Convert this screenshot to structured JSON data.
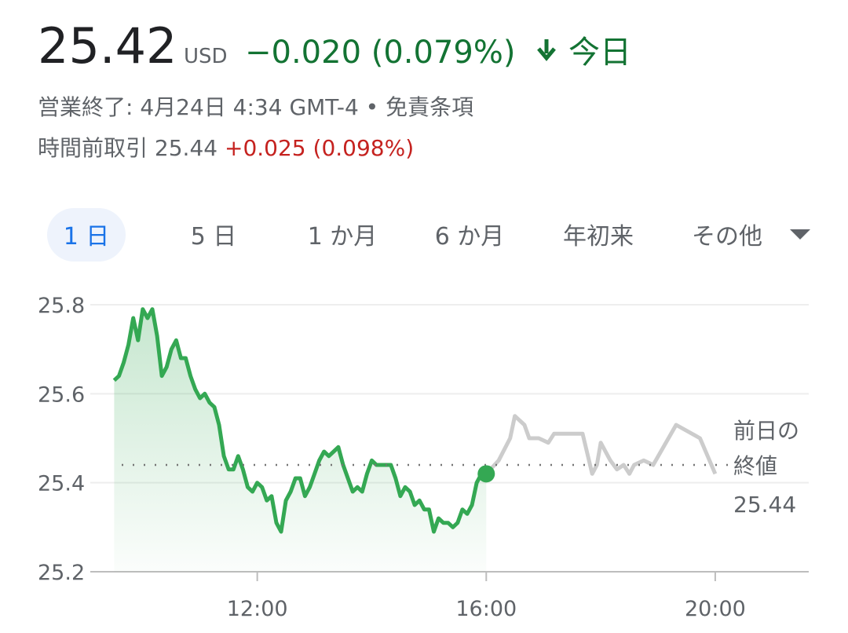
{
  "header": {
    "price": "25.42",
    "currency": "USD",
    "change": "−0.020 (0.079%)",
    "period": "今日",
    "status": "営業終了: 4月24日 4:34 GMT-4",
    "separator": "•",
    "disclaimer": "免責条項",
    "premarket_label": "時間前取引",
    "premarket_price": "25.44",
    "premarket_change": "+0.025 (0.098%)"
  },
  "tabs": [
    "1 日",
    "5 日",
    "1 か月",
    "6 か月",
    "年初来",
    "その他"
  ],
  "chart_data": {
    "type": "line",
    "xlim": [
      545,
      1298
    ],
    "ylim": [
      25.2,
      25.8
    ],
    "xticks": [
      {
        "value": 720,
        "label": "12:00"
      },
      {
        "value": 960,
        "label": "16:00"
      },
      {
        "value": 1200,
        "label": "20:00"
      }
    ],
    "yticks": [
      25.2,
      25.4,
      25.6,
      25.8
    ],
    "grid": true,
    "reference": {
      "value": 25.44,
      "label": [
        "前日の",
        "終値"
      ]
    },
    "series": [
      {
        "color": "#34a853",
        "area": true,
        "end_dot": true,
        "x": [
          570,
          575,
          580,
          585,
          590,
          595,
          600,
          605,
          610,
          615,
          620,
          625,
          630,
          635,
          640,
          645,
          650,
          655,
          660,
          665,
          670,
          675,
          680,
          685,
          690,
          695,
          700,
          705,
          710,
          715,
          720,
          725,
          730,
          735,
          740,
          745,
          750,
          755,
          760,
          765,
          770,
          775,
          780,
          785,
          790,
          795,
          800,
          805,
          810,
          815,
          820,
          825,
          830,
          835,
          840,
          845,
          850,
          855,
          860,
          865,
          870,
          875,
          880,
          885,
          890,
          895,
          900,
          905,
          910,
          915,
          920,
          925,
          930,
          935,
          940,
          945,
          950,
          955,
          960
        ],
        "values": [
          25.63,
          25.64,
          25.67,
          25.71,
          25.77,
          25.72,
          25.79,
          25.77,
          25.79,
          25.73,
          25.64,
          25.66,
          25.7,
          25.72,
          25.68,
          25.68,
          25.64,
          25.61,
          25.59,
          25.6,
          25.58,
          25.57,
          25.53,
          25.46,
          25.43,
          25.43,
          25.46,
          25.43,
          25.39,
          25.38,
          25.4,
          25.39,
          25.36,
          25.37,
          25.31,
          25.29,
          25.36,
          25.38,
          25.41,
          25.41,
          25.37,
          25.39,
          25.42,
          25.45,
          25.47,
          25.46,
          25.47,
          25.48,
          25.44,
          25.41,
          25.38,
          25.39,
          25.38,
          25.42,
          25.45,
          25.44,
          25.44,
          25.44,
          25.44,
          25.41,
          25.37,
          25.39,
          25.38,
          25.35,
          25.36,
          25.34,
          25.34,
          25.29,
          25.32,
          25.31,
          25.31,
          25.3,
          25.31,
          25.34,
          25.33,
          25.35,
          25.4,
          25.42,
          25.42
        ]
      },
      {
        "color": "#cccccc",
        "area": false,
        "end_dot": false,
        "x": [
          960,
          973,
          985,
          990,
          1000,
          1005,
          1015,
          1025,
          1031,
          1043,
          1061,
          1071,
          1076,
          1080,
          1090,
          1097,
          1104,
          1110,
          1115,
          1125,
          1135,
          1159,
          1184,
          1200
        ],
        "values": [
          25.42,
          25.45,
          25.5,
          25.55,
          25.53,
          25.5,
          25.5,
          25.49,
          25.51,
          25.51,
          25.51,
          25.42,
          25.44,
          25.49,
          25.45,
          25.43,
          25.44,
          25.42,
          25.44,
          25.45,
          25.44,
          25.53,
          25.5,
          25.42
        ]
      }
    ]
  }
}
